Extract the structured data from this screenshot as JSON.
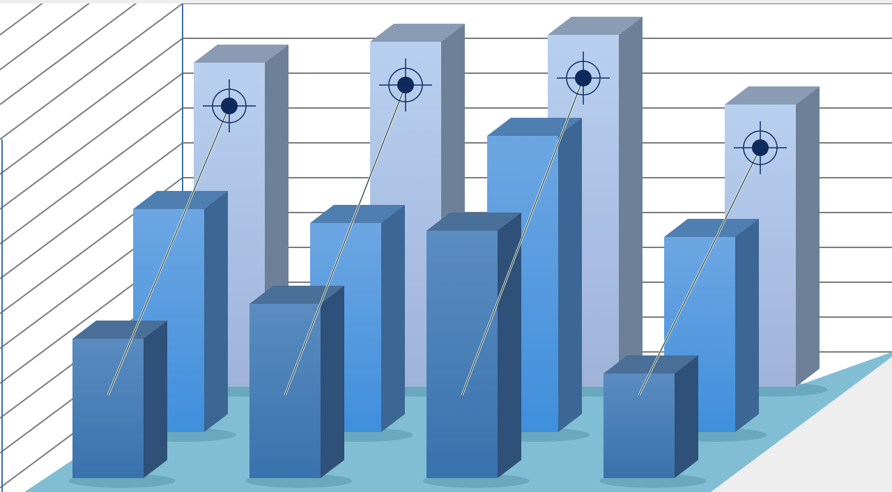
{
  "chart_data": {
    "type": "bar",
    "style": "3d-grouped",
    "title": "",
    "xlabel": "",
    "ylabel": "",
    "categories": [
      "",
      "",
      "",
      ""
    ],
    "grid": true,
    "ylim": [
      0,
      11
    ],
    "series": [
      {
        "values": [
          9.3,
          9.9,
          10.1,
          8.1
        ],
        "color": "#b4cdef",
        "markers": "target"
      },
      {
        "values": [
          6.4,
          6.0,
          8.5,
          5.6
        ],
        "color": "#5ea0e0"
      },
      {
        "values": [
          4.0,
          5.0,
          7.1,
          3.0
        ],
        "color": "#4a82bd"
      }
    ]
  },
  "colors": {
    "background": "#eeeeee",
    "wall": "#ffffff",
    "gridline": "#7a7a7a",
    "axis": "#3a6ea5",
    "floor": "#82bed3",
    "target": "#0f2a5c"
  }
}
